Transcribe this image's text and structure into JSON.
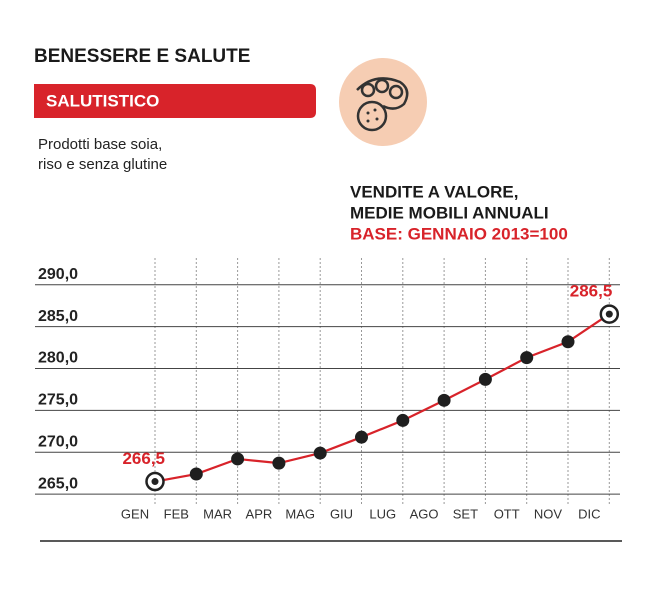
{
  "header": {
    "title": "BENESSERE E SALUTE",
    "badge": "SALUTISTICO",
    "description": [
      "Prodotti base soia,",
      "riso e senza glutine"
    ]
  },
  "chart_data": {
    "type": "line",
    "title": [
      "VENDITE A VALORE,",
      "MEDIE MOBILI ANNUALI"
    ],
    "subtitle": "BASE: GENNAIO 2013=100",
    "categories": [
      "GEN",
      "FEB",
      "MAR",
      "APR",
      "MAG",
      "GIU",
      "LUG",
      "AGO",
      "SET",
      "OTT",
      "NOV",
      "DIC"
    ],
    "series": [
      {
        "name": "Vendite a valore",
        "color": "#d8232a",
        "values": [
          266.5,
          267.4,
          269.2,
          268.7,
          269.9,
          271.8,
          273.8,
          276.2,
          278.7,
          281.3,
          283.2,
          286.5
        ],
        "value_labels": [
          "266,5",
          null,
          null,
          null,
          null,
          null,
          null,
          null,
          null,
          null,
          null,
          "286,5"
        ]
      }
    ],
    "ylim": [
      263.7,
      293.2
    ],
    "yticks": [
      {
        "value": 265,
        "label": "265,0"
      },
      {
        "value": 270,
        "label": "270,0"
      },
      {
        "value": 275,
        "label": "275,0"
      },
      {
        "value": 280,
        "label": "280,0"
      },
      {
        "value": 285,
        "label": "285,0"
      },
      {
        "value": 290,
        "label": "290,0"
      }
    ],
    "grid": true
  }
}
